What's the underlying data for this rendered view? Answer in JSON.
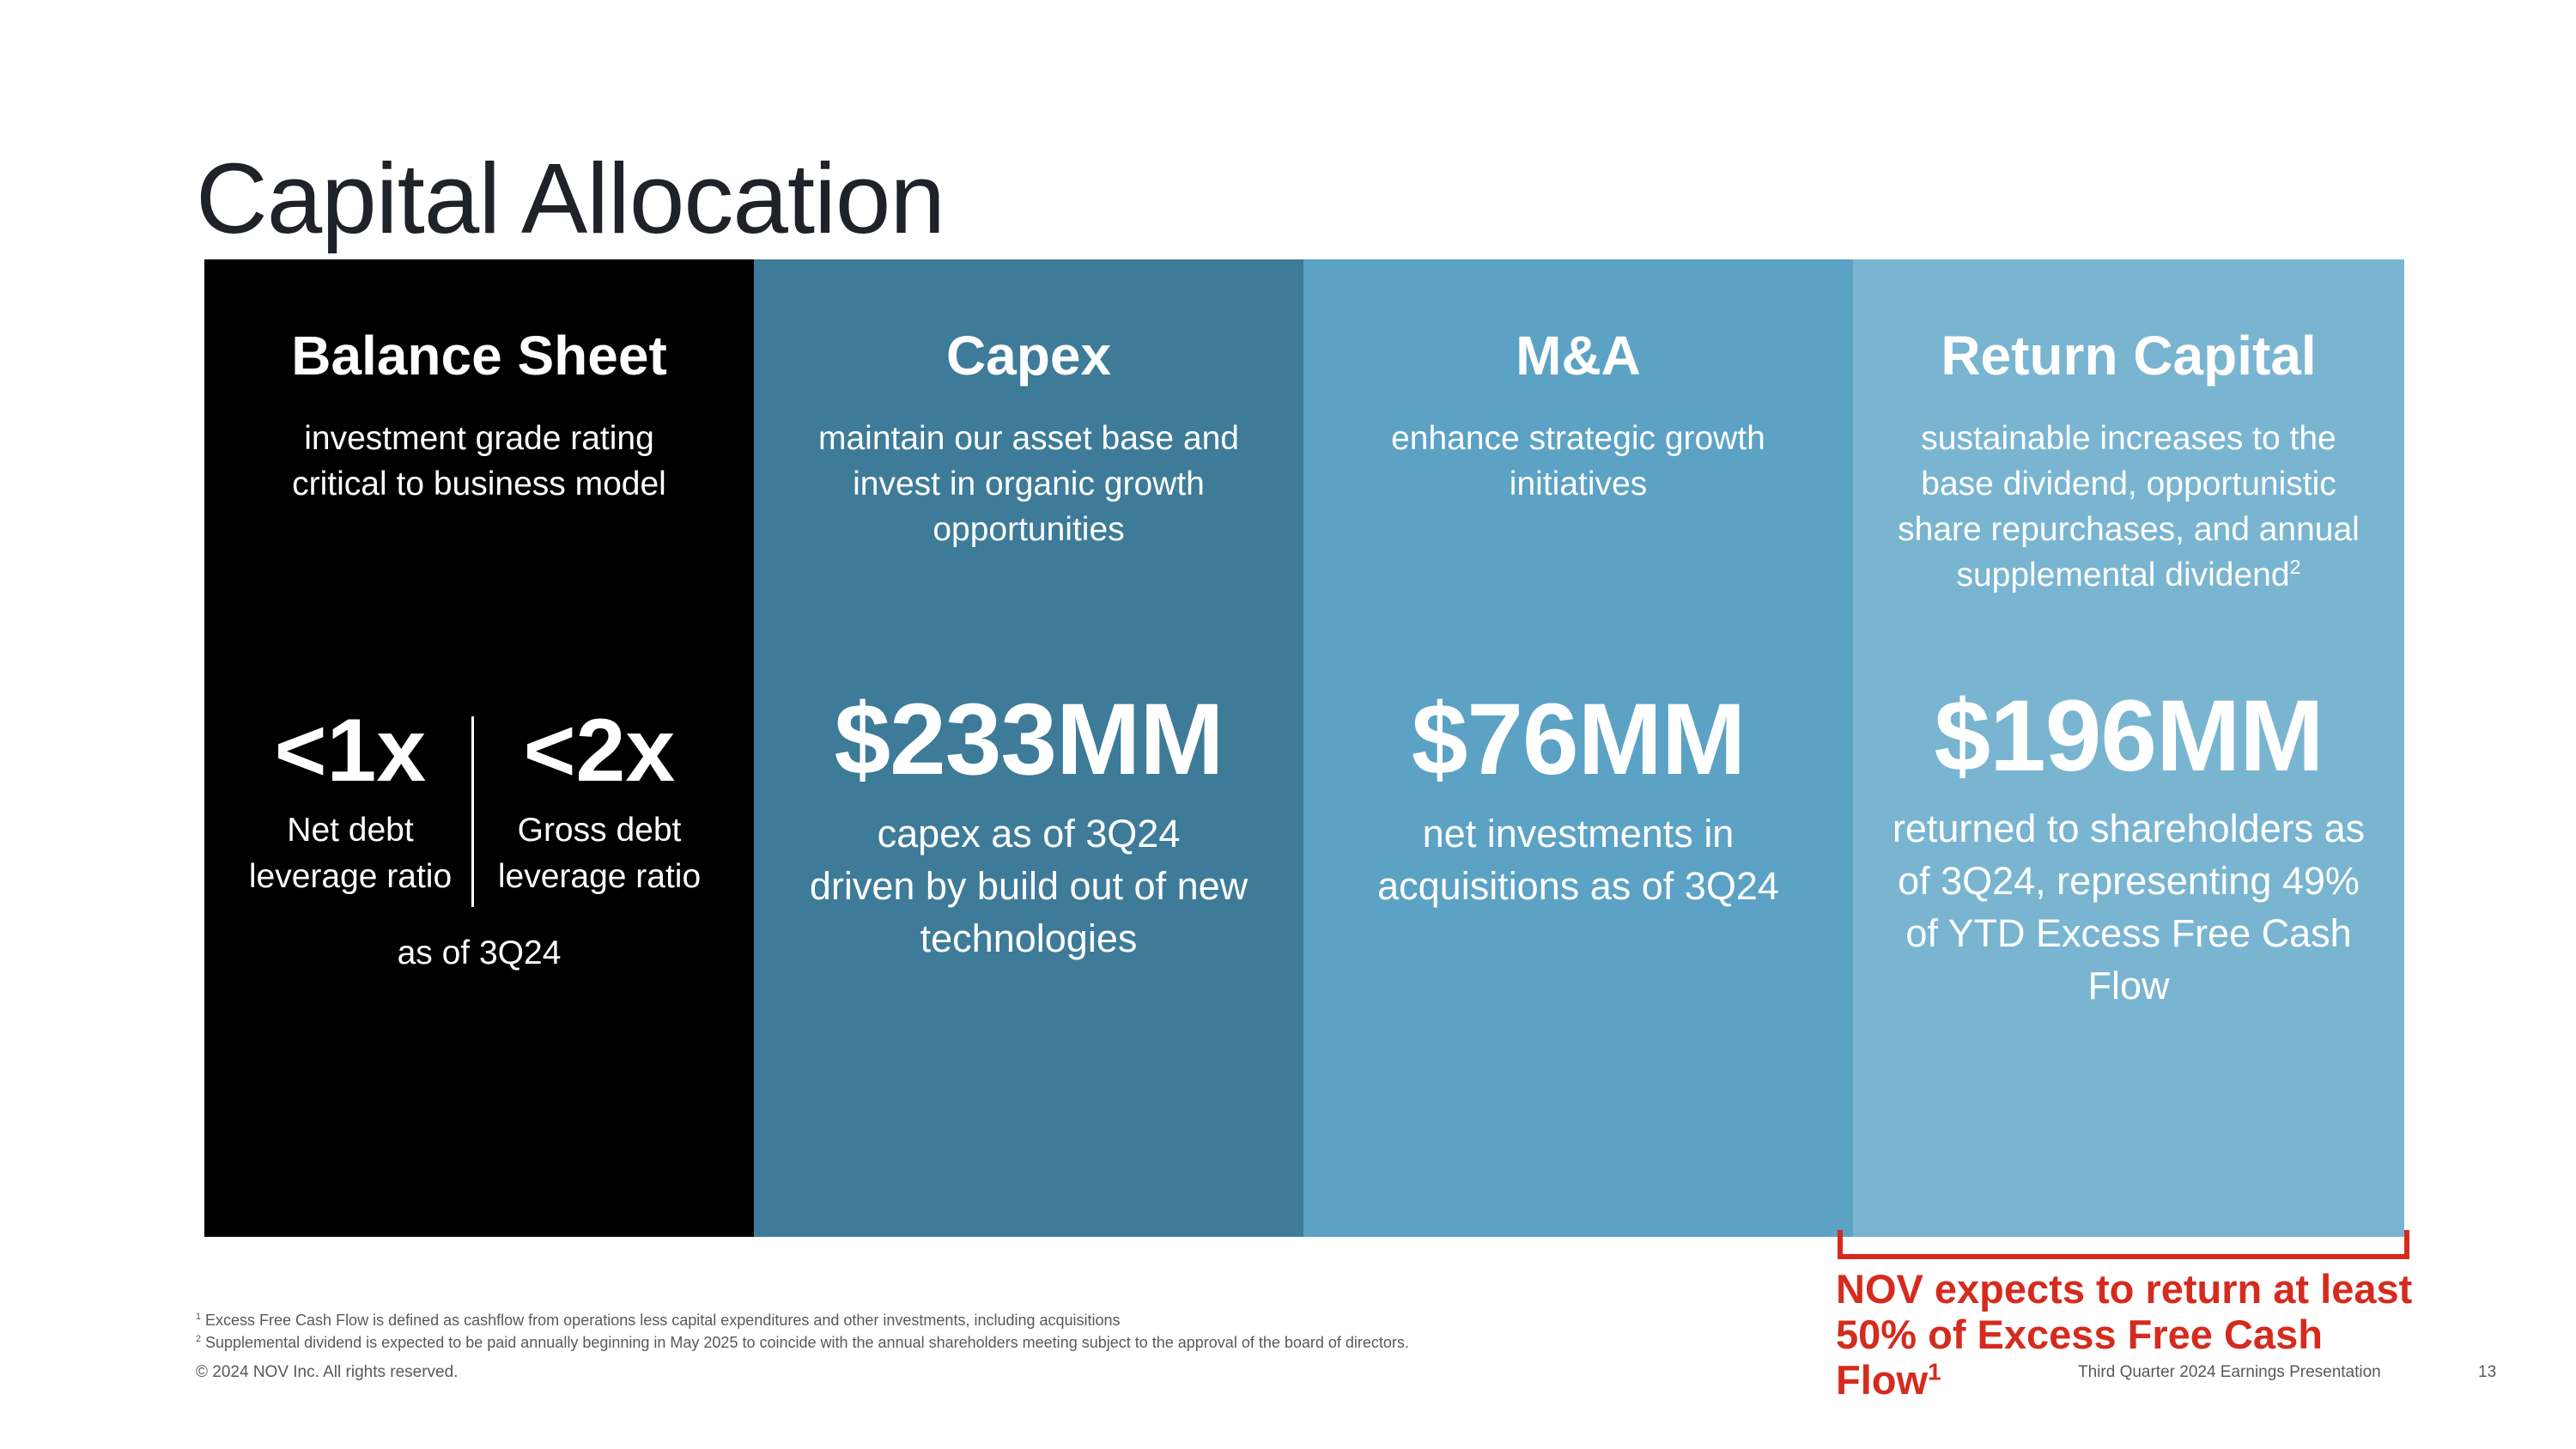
{
  "title": "Capital Allocation",
  "panels": {
    "balance_sheet": {
      "heading": "Balance Sheet",
      "subtitle": "investment grade rating critical to business model",
      "left": {
        "value": "<1x",
        "label_line1": "Net debt",
        "label_line2": "leverage ratio"
      },
      "right": {
        "value": "<2x",
        "label_line1": "Gross debt",
        "label_line2": "leverage ratio"
      },
      "as_of": "as of 3Q24"
    },
    "capex": {
      "heading": "Capex",
      "subtitle": "maintain our asset base and invest in organic growth opportunities",
      "amount": "$233MM",
      "desc_line1": "capex as of 3Q24",
      "desc_line2": "driven by build out of new technologies"
    },
    "ma": {
      "heading": "M&A",
      "subtitle": "enhance strategic growth initiatives",
      "amount": "$76MM",
      "description": "net investments in acquisitions as of 3Q24"
    },
    "return_capital": {
      "heading": "Return Capital",
      "subtitle": "sustainable increases to the base dividend, opportunistic share repurchases, and annual supplemental dividend",
      "subtitle_footnote": "2",
      "amount": "$196MM",
      "description": "returned to shareholders as of 3Q24, representing 49% of YTD Excess Free Cash Flow"
    }
  },
  "callout": {
    "line1": "NOV expects to return at least",
    "line2": "50% of Excess Free Cash Flow",
    "footnote": "1"
  },
  "footnotes": [
    {
      "marker": "1",
      "text": " Excess Free Cash Flow is defined as cashflow from operations less capital expenditures and other investments, including acquisitions"
    },
    {
      "marker": "2",
      "text": " Supplemental dividend is expected to be paid annually beginning in May 2025 to coincide with the annual shareholders meeting subject to the approval of the board of directors."
    }
  ],
  "footer": {
    "copyright": "© 2024 NOV Inc. All rights reserved.",
    "presentation": "Third Quarter 2024 Earnings Presentation",
    "page": "13"
  },
  "colors": {
    "balance_sheet": "#000000",
    "capex": "#3d7b99",
    "ma": "#5ba2c4",
    "return_capital": "#79b5d1",
    "accent_red": "#d52b1e"
  }
}
